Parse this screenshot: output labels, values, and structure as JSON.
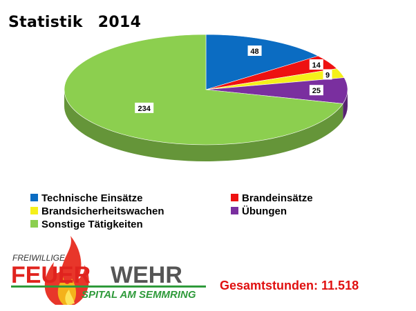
{
  "title": {
    "label": "Statistik",
    "year": "2014"
  },
  "chart_data": {
    "type": "pie",
    "title": "Statistik 2014",
    "categories": [
      "Technische Einsätze",
      "Brandeinsätze",
      "Brandsicherheitswachen",
      "Übungen",
      "Sonstige Tätigkeiten"
    ],
    "values": [
      48,
      14,
      9,
      25,
      234
    ],
    "colors": [
      "#0b6cc2",
      "#ee1111",
      "#f5f01a",
      "#7a2f9f",
      "#8ccf4f"
    ],
    "legend_position": "bottom",
    "style": "3d"
  },
  "logo": {
    "top_text": "FREIWILLIGE",
    "main_left": "FEUER",
    "main_right": "WEHR",
    "sub_text": "SPITAL AM SEMMRING"
  },
  "total": {
    "text": "Gesamtstunden: 11.518"
  }
}
